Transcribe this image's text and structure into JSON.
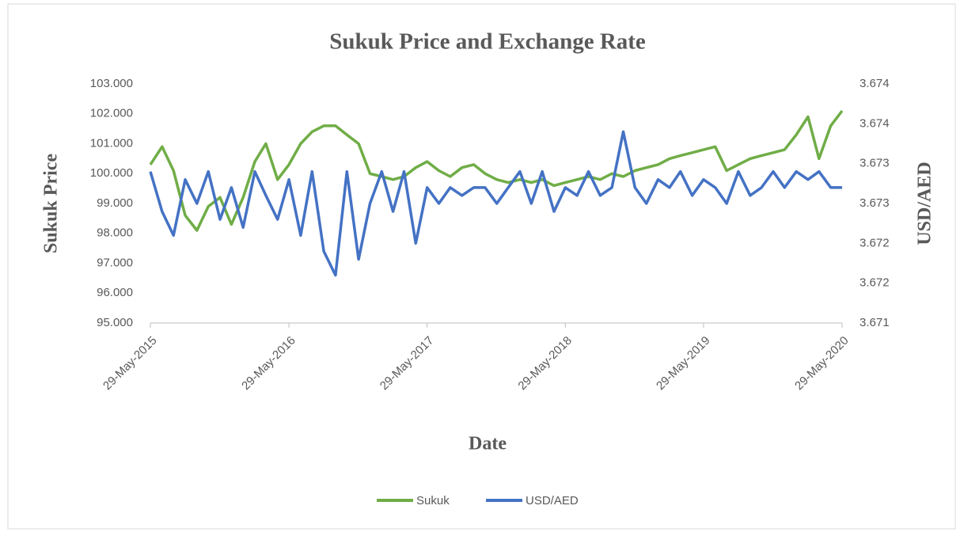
{
  "chart_data": {
    "type": "line",
    "title": "Sukuk Price and Exchange Rate",
    "xlabel": "Date",
    "ylabel": "Sukuk Price",
    "y2label": "USD/AED",
    "x": [
      "29-May-2015",
      "29-Jun-2015",
      "29-Jul-2015",
      "29-Aug-2015",
      "29-Sep-2015",
      "29-Oct-2015",
      "29-Nov-2015",
      "29-Dec-2015",
      "29-Jan-2016",
      "29-Feb-2016",
      "29-Mar-2016",
      "29-Apr-2016",
      "29-May-2016",
      "29-Jun-2016",
      "29-Jul-2016",
      "29-Aug-2016",
      "29-Sep-2016",
      "29-Oct-2016",
      "29-Nov-2016",
      "29-Dec-2016",
      "29-Jan-2017",
      "28-Feb-2017",
      "29-Mar-2017",
      "29-Apr-2017",
      "29-May-2017",
      "29-Jun-2017",
      "29-Jul-2017",
      "29-Aug-2017",
      "29-Sep-2017",
      "29-Oct-2017",
      "29-Nov-2017",
      "29-Dec-2017",
      "29-Jan-2018",
      "28-Feb-2018",
      "29-Mar-2018",
      "29-Apr-2018",
      "29-May-2018",
      "29-Jun-2018",
      "29-Jul-2018",
      "29-Aug-2018",
      "29-Sep-2018",
      "29-Oct-2018",
      "29-Nov-2018",
      "29-Dec-2018",
      "29-Jan-2019",
      "28-Feb-2019",
      "29-Mar-2019",
      "29-Apr-2019",
      "29-May-2019",
      "29-Jun-2019",
      "29-Jul-2019",
      "29-Aug-2019",
      "29-Sep-2019",
      "29-Oct-2019",
      "29-Nov-2019",
      "29-Dec-2019",
      "29-Jan-2020",
      "29-Feb-2020",
      "29-Mar-2020",
      "29-Apr-2020",
      "29-May-2020"
    ],
    "xlim": [
      "29-May-2015",
      "29-May-2020"
    ],
    "xticks": [
      "29-May-2015",
      "29-May-2016",
      "29-May-2017",
      "29-May-2018",
      "29-May-2019",
      "29-May-2020"
    ],
    "ylim": [
      95,
      103
    ],
    "yticks": [
      {
        "value": 95,
        "label": "95.000"
      },
      {
        "value": 96,
        "label": "96.000"
      },
      {
        "value": 97,
        "label": "97.000"
      },
      {
        "value": 98,
        "label": "98.000"
      },
      {
        "value": 99,
        "label": "99.000"
      },
      {
        "value": 100,
        "label": "100.000"
      },
      {
        "value": 101,
        "label": "101.000"
      },
      {
        "value": 102,
        "label": "102.000"
      },
      {
        "value": 103,
        "label": "103.000"
      }
    ],
    "y2lim": [
      3.6712,
      3.6742
    ],
    "y2ticks": [
      {
        "value": 3.6712,
        "label": "3.671"
      },
      {
        "value": 3.6717,
        "label": "3.672"
      },
      {
        "value": 3.6722,
        "label": "3.672"
      },
      {
        "value": 3.6727,
        "label": "3.673"
      },
      {
        "value": 3.6732,
        "label": "3.673"
      },
      {
        "value": 3.6737,
        "label": "3.674"
      },
      {
        "value": 3.6742,
        "label": "3.674"
      }
    ],
    "legend": "bottom",
    "series": [
      {
        "name": "Sukuk",
        "color": "#70ad47",
        "values": [
          100.3,
          100.9,
          100.1,
          98.6,
          98.1,
          98.9,
          99.2,
          98.3,
          99.2,
          100.4,
          101.0,
          99.8,
          100.3,
          101.0,
          101.4,
          101.6,
          101.6,
          101.3,
          101.0,
          100.0,
          99.9,
          99.8,
          99.9,
          100.2,
          100.4,
          100.1,
          99.9,
          100.2,
          100.3,
          100.0,
          99.8,
          99.7,
          99.8,
          99.7,
          99.8,
          99.6,
          99.7,
          99.8,
          99.9,
          99.8,
          100.0,
          99.9,
          100.1,
          100.2,
          100.3,
          100.5,
          100.6,
          100.7,
          100.8,
          100.9,
          100.1,
          100.3,
          100.5,
          100.6,
          100.7,
          100.8,
          101.3,
          101.9,
          100.5,
          101.6,
          102.1
        ]
      },
      {
        "name": "USD/AED",
        "color": "#4472c4",
        "axis": "y2",
        "values": [
          3.6731,
          3.6726,
          3.6723,
          3.673,
          3.6727,
          3.6731,
          3.6725,
          3.6729,
          3.6724,
          3.6731,
          3.6728,
          3.6725,
          3.673,
          3.6723,
          3.6731,
          3.6721,
          3.6718,
          3.6731,
          3.672,
          3.6727,
          3.6731,
          3.6726,
          3.6731,
          3.6722,
          3.6729,
          3.6727,
          3.6729,
          3.6728,
          3.6729,
          3.6729,
          3.6727,
          3.6729,
          3.6731,
          3.6727,
          3.6731,
          3.6726,
          3.6729,
          3.6728,
          3.6731,
          3.6728,
          3.6729,
          3.6736,
          3.6729,
          3.6727,
          3.673,
          3.6729,
          3.6731,
          3.6728,
          3.673,
          3.6729,
          3.6727,
          3.6731,
          3.6728,
          3.6729,
          3.6731,
          3.6729,
          3.6731,
          3.673,
          3.6731,
          3.6729,
          3.6729
        ]
      }
    ]
  }
}
